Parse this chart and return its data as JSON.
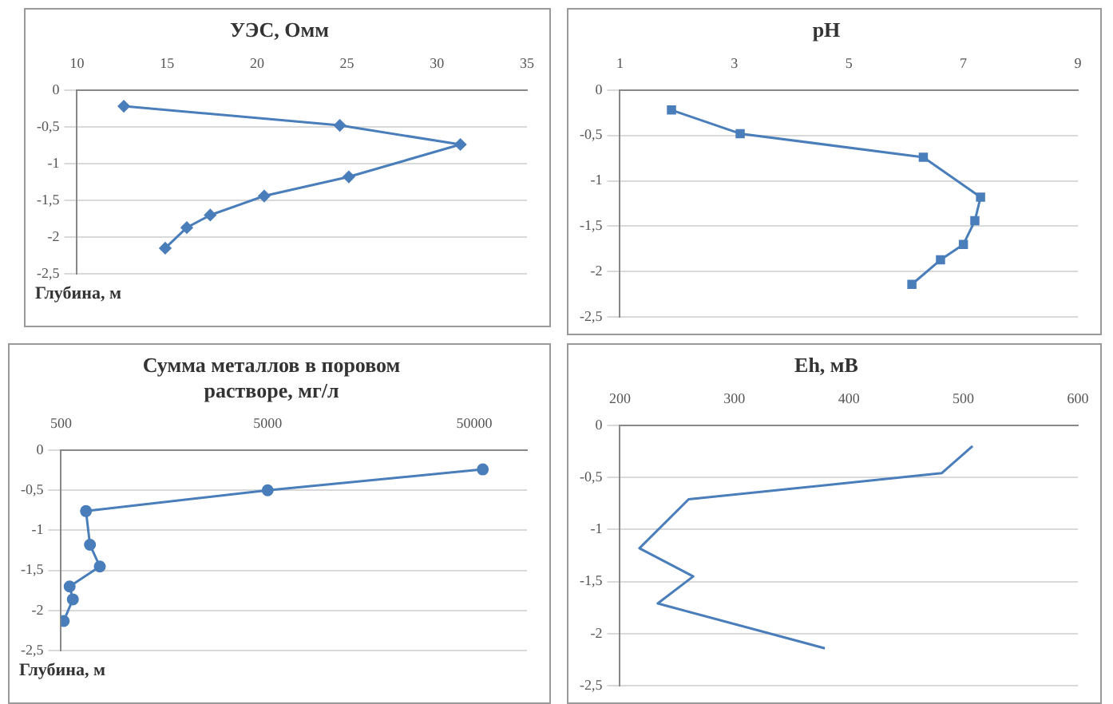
{
  "chart_data": [
    {
      "type": "line",
      "title": "УЭС, Омм",
      "ylabel": "Глубина, м",
      "marker": "diamond",
      "grid": "y",
      "xlim": [
        10,
        35
      ],
      "xticks": [
        10,
        15,
        20,
        25,
        30,
        35
      ],
      "ylim": [
        -2.5,
        0
      ],
      "yticks": [
        0,
        {
          "value": -0.5,
          "label": "-0,5"
        },
        -1,
        {
          "value": -1.5,
          "label": "-1,5"
        },
        -2,
        {
          "value": -2.5,
          "label": "-2,5"
        }
      ],
      "series": [
        {
          "color": "#4a7ebb",
          "x": [
            12.6,
            24.6,
            31.3,
            25.1,
            20.4,
            17.4,
            16.1,
            14.9
          ],
          "values": [
            -0.22,
            -0.48,
            -0.74,
            -1.18,
            -1.44,
            -1.7,
            -1.87,
            -2.15
          ]
        }
      ]
    },
    {
      "type": "line",
      "title": "pH",
      "marker": "square",
      "grid": "y",
      "xlim": [
        1,
        9
      ],
      "xticks": [
        1,
        3,
        5,
        7,
        9
      ],
      "ylim": [
        -2.5,
        0
      ],
      "yticks": [
        0,
        {
          "value": -0.5,
          "label": "-0,5"
        },
        -1,
        {
          "value": -1.5,
          "label": "-1,5"
        },
        -2,
        {
          "value": -2.5,
          "label": "-2,5"
        }
      ],
      "series": [
        {
          "color": "#4a7ebb",
          "x": [
            1.9,
            3.1,
            6.3,
            7.3,
            7.2,
            7.0,
            6.6,
            6.1
          ],
          "values": [
            -0.22,
            -0.48,
            -0.74,
            -1.18,
            -1.44,
            -1.7,
            -1.87,
            -2.14
          ]
        }
      ]
    },
    {
      "type": "line",
      "title": "Сумма металлов в поровом растворе, мг/л",
      "ylabel": "Глубина, м",
      "marker": "circle",
      "grid": "y",
      "log": "x",
      "xlim": [
        500,
        90000
      ],
      "xticks": [
        500,
        5000,
        50000
      ],
      "ylim": [
        -2.5,
        0
      ],
      "yticks": [
        0,
        {
          "value": -0.5,
          "label": "-0,5"
        },
        -1,
        {
          "value": -1.5,
          "label": "-1,5"
        },
        -2,
        {
          "value": -2.5,
          "label": "-2,5"
        }
      ],
      "series": [
        {
          "color": "#4a7ebb",
          "x": [
            55000,
            5000,
            660,
            690,
            770,
            550,
            570,
            515
          ],
          "values": [
            -0.24,
            -0.5,
            -0.76,
            -1.18,
            -1.45,
            -1.7,
            -1.86,
            -2.13
          ]
        }
      ]
    },
    {
      "type": "line",
      "title": "Eh, мВ",
      "marker": "none",
      "grid": "y",
      "xlim": [
        200,
        600
      ],
      "xticks": [
        200,
        300,
        400,
        500,
        600
      ],
      "ylim": [
        -2.5,
        0
      ],
      "yticks": [
        0,
        {
          "value": -0.5,
          "label": "-0,5"
        },
        -1,
        {
          "value": -1.5,
          "label": "-1,5"
        },
        -2,
        {
          "value": -2.5,
          "label": "-2,5"
        }
      ],
      "series": [
        {
          "color": "#4a7ebb",
          "x": [
            508,
            481,
            260,
            217,
            264,
            233,
            379
          ],
          "values": [
            -0.2,
            -0.46,
            -0.71,
            -1.18,
            -1.45,
            -1.71,
            -2.14
          ]
        }
      ]
    }
  ]
}
